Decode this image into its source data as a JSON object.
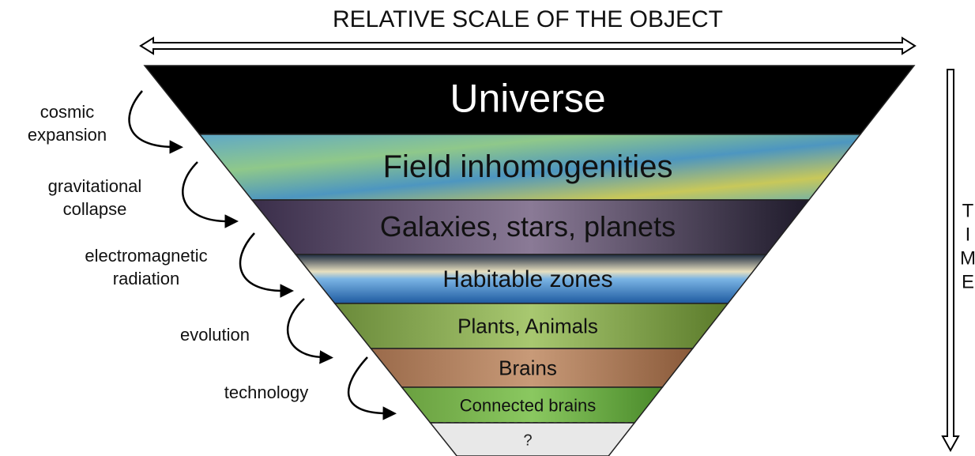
{
  "header": {
    "title": "RELATIVE SCALE OF THE OBJECT"
  },
  "time_axis": {
    "letters": [
      "T",
      "I",
      "M",
      "E"
    ]
  },
  "layers": [
    {
      "label": "Universe"
    },
    {
      "label": "Field inhomogenities"
    },
    {
      "label": "Galaxies, stars, planets"
    },
    {
      "label": "Habitable zones"
    },
    {
      "label": "Plants, Animals"
    },
    {
      "label": "Brains"
    },
    {
      "label": "Connected brains"
    },
    {
      "label": "?"
    }
  ],
  "processes": [
    {
      "lines": [
        "cosmic",
        "expansion"
      ]
    },
    {
      "lines": [
        "gravitational",
        "collapse"
      ]
    },
    {
      "lines": [
        "electromagnetic",
        "radiation"
      ]
    },
    {
      "lines": [
        "evolution"
      ]
    },
    {
      "lines": [
        "technology"
      ]
    }
  ]
}
